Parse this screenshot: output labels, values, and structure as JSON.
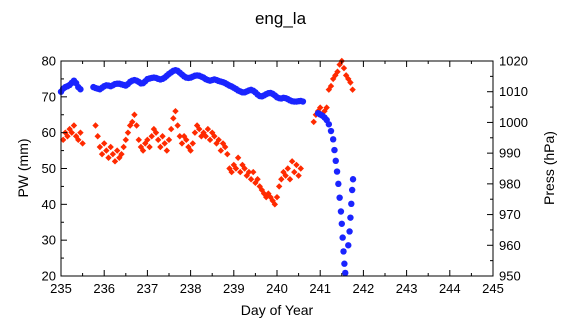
{
  "chart_data": {
    "type": "scatter",
    "title": "eng_la",
    "xlabel": "Day of Year",
    "ylabel_left": "PW (mm)",
    "ylabel_right": "Press (hPa)",
    "xlim": [
      235,
      245
    ],
    "ylim_left": [
      20,
      80
    ],
    "ylim_right": [
      950,
      1020
    ],
    "xticks": [
      "235",
      "236",
      "237",
      "238",
      "239",
      "240",
      "241",
      "242",
      "243",
      "244",
      "245"
    ],
    "yticks_left": [
      "20",
      "30",
      "40",
      "50",
      "60",
      "70",
      "80"
    ],
    "yticks_right": [
      "950",
      "960",
      "970",
      "980",
      "990",
      "1000",
      "1010",
      "1020"
    ],
    "grid": false,
    "legend": "none",
    "series": [
      {
        "axis": "left",
        "color": "#ff2a00",
        "marker": "diamond",
        "points": [
          [
            235.05,
            58
          ],
          [
            235.1,
            60
          ],
          [
            235.15,
            59
          ],
          [
            235.2,
            61
          ],
          [
            235.25,
            60
          ],
          [
            235.3,
            62
          ],
          [
            235.35,
            59
          ],
          [
            235.4,
            58
          ],
          [
            235.45,
            60
          ],
          [
            235.5,
            57
          ],
          [
            235.8,
            62
          ],
          [
            235.85,
            59
          ],
          [
            235.9,
            56
          ],
          [
            235.95,
            54
          ],
          [
            236.0,
            57
          ],
          [
            236.05,
            55
          ],
          [
            236.1,
            53
          ],
          [
            236.15,
            56
          ],
          [
            236.2,
            54
          ],
          [
            236.25,
            52
          ],
          [
            236.3,
            55
          ],
          [
            236.35,
            53
          ],
          [
            236.4,
            54
          ],
          [
            236.45,
            56
          ],
          [
            236.5,
            58
          ],
          [
            236.55,
            60
          ],
          [
            236.6,
            62
          ],
          [
            236.65,
            63
          ],
          [
            236.7,
            65
          ],
          [
            236.75,
            62
          ],
          [
            236.8,
            58
          ],
          [
            236.85,
            56
          ],
          [
            236.9,
            55
          ],
          [
            236.95,
            57
          ],
          [
            237.0,
            58
          ],
          [
            237.05,
            56
          ],
          [
            237.1,
            59
          ],
          [
            237.15,
            61
          ],
          [
            237.2,
            60
          ],
          [
            237.25,
            58
          ],
          [
            237.3,
            56
          ],
          [
            237.35,
            59
          ],
          [
            237.4,
            57
          ],
          [
            237.45,
            55
          ],
          [
            237.5,
            58
          ],
          [
            237.55,
            61
          ],
          [
            237.6,
            64
          ],
          [
            237.65,
            66
          ],
          [
            237.7,
            62
          ],
          [
            237.75,
            59
          ],
          [
            237.8,
            57
          ],
          [
            237.85,
            59
          ],
          [
            237.9,
            58
          ],
          [
            237.95,
            56
          ],
          [
            238.0,
            55
          ],
          [
            238.05,
            57
          ],
          [
            238.1,
            60
          ],
          [
            238.15,
            62
          ],
          [
            238.2,
            61
          ],
          [
            238.25,
            59
          ],
          [
            238.3,
            60
          ],
          [
            238.35,
            59
          ],
          [
            238.4,
            61
          ],
          [
            238.45,
            58
          ],
          [
            238.5,
            60
          ],
          [
            238.55,
            59
          ],
          [
            238.6,
            57
          ],
          [
            238.65,
            58
          ],
          [
            238.7,
            55
          ],
          [
            238.75,
            57
          ],
          [
            238.8,
            56
          ],
          [
            238.85,
            54
          ],
          [
            238.9,
            50
          ],
          [
            238.95,
            49
          ],
          [
            239.0,
            51
          ],
          [
            239.05,
            50
          ],
          [
            239.1,
            53
          ],
          [
            239.15,
            49
          ],
          [
            239.2,
            51
          ],
          [
            239.25,
            50
          ],
          [
            239.3,
            48
          ],
          [
            239.35,
            49
          ],
          [
            239.4,
            47
          ],
          [
            239.45,
            49
          ],
          [
            239.5,
            46
          ],
          [
            239.55,
            47
          ],
          [
            239.6,
            45
          ],
          [
            239.65,
            44
          ],
          [
            239.7,
            43
          ],
          [
            239.75,
            42
          ],
          [
            239.8,
            43
          ],
          [
            239.85,
            42
          ],
          [
            239.9,
            41
          ],
          [
            239.95,
            40
          ],
          [
            240.0,
            42
          ],
          [
            240.05,
            45
          ],
          [
            240.1,
            47
          ],
          [
            240.15,
            49
          ],
          [
            240.2,
            48
          ],
          [
            240.25,
            50
          ],
          [
            240.3,
            47
          ],
          [
            240.35,
            52
          ],
          [
            240.4,
            49
          ],
          [
            240.45,
            51
          ],
          [
            240.5,
            48
          ],
          [
            240.55,
            50
          ],
          [
            240.85,
            63
          ],
          [
            240.9,
            65
          ],
          [
            240.95,
            66
          ],
          [
            241.0,
            67
          ],
          [
            241.05,
            65
          ],
          [
            241.1,
            66
          ],
          [
            241.15,
            67
          ],
          [
            241.2,
            72
          ],
          [
            241.25,
            73
          ],
          [
            241.3,
            75
          ],
          [
            241.35,
            76
          ],
          [
            241.4,
            77
          ],
          [
            241.45,
            79
          ],
          [
            241.5,
            80
          ],
          [
            241.55,
            78
          ],
          [
            241.6,
            76
          ],
          [
            241.65,
            75
          ],
          [
            241.7,
            74
          ],
          [
            241.75,
            72
          ]
        ]
      },
      {
        "axis": "right",
        "color": "#1a24ff",
        "marker": "circle",
        "points": [
          [
            235.0,
            1010.0
          ],
          [
            235.05,
            1011.0
          ],
          [
            235.1,
            1011.5
          ],
          [
            235.15,
            1011.8
          ],
          [
            235.2,
            1012.2
          ],
          [
            235.25,
            1012.9
          ],
          [
            235.3,
            1013.6
          ],
          [
            235.35,
            1012.8
          ],
          [
            235.4,
            1011.5
          ],
          [
            235.45,
            1010.8
          ],
          [
            235.75,
            1011.5
          ],
          [
            235.8,
            1011.2
          ],
          [
            235.85,
            1011.0
          ],
          [
            235.9,
            1010.8
          ],
          [
            235.95,
            1011.3
          ],
          [
            236.0,
            1011.8
          ],
          [
            236.05,
            1012.1
          ],
          [
            236.1,
            1012.0
          ],
          [
            236.15,
            1011.8
          ],
          [
            236.2,
            1012.1
          ],
          [
            236.25,
            1012.5
          ],
          [
            236.3,
            1012.6
          ],
          [
            236.35,
            1012.6
          ],
          [
            236.4,
            1012.4
          ],
          [
            236.45,
            1012.2
          ],
          [
            236.5,
            1012.0
          ],
          [
            236.55,
            1012.5
          ],
          [
            236.6,
            1013.2
          ],
          [
            236.65,
            1013.6
          ],
          [
            236.7,
            1013.8
          ],
          [
            236.75,
            1013.6
          ],
          [
            236.8,
            1013.2
          ],
          [
            236.85,
            1012.7
          ],
          [
            236.9,
            1012.8
          ],
          [
            236.95,
            1013.4
          ],
          [
            237.0,
            1014.1
          ],
          [
            237.05,
            1014.3
          ],
          [
            237.1,
            1014.5
          ],
          [
            237.15,
            1014.6
          ],
          [
            237.2,
            1014.5
          ],
          [
            237.25,
            1014.2
          ],
          [
            237.3,
            1014.0
          ],
          [
            237.35,
            1014.2
          ],
          [
            237.4,
            1014.6
          ],
          [
            237.45,
            1015.2
          ],
          [
            237.5,
            1015.8
          ],
          [
            237.55,
            1016.3
          ],
          [
            237.6,
            1016.8
          ],
          [
            237.65,
            1017.0
          ],
          [
            237.7,
            1016.8
          ],
          [
            237.75,
            1016.2
          ],
          [
            237.8,
            1015.6
          ],
          [
            237.85,
            1015.0
          ],
          [
            237.9,
            1014.6
          ],
          [
            237.95,
            1014.5
          ],
          [
            238.0,
            1014.6
          ],
          [
            238.05,
            1014.9
          ],
          [
            238.1,
            1015.2
          ],
          [
            238.15,
            1015.3
          ],
          [
            238.2,
            1015.2
          ],
          [
            238.25,
            1014.9
          ],
          [
            238.3,
            1014.6
          ],
          [
            238.35,
            1014.1
          ],
          [
            238.4,
            1013.8
          ],
          [
            238.45,
            1013.6
          ],
          [
            238.5,
            1013.8
          ],
          [
            238.55,
            1014.0
          ],
          [
            238.6,
            1013.8
          ],
          [
            238.65,
            1013.5
          ],
          [
            238.7,
            1013.3
          ],
          [
            238.75,
            1013.1
          ],
          [
            238.8,
            1012.8
          ],
          [
            238.85,
            1012.4
          ],
          [
            238.9,
            1012.0
          ],
          [
            238.95,
            1011.7
          ],
          [
            239.0,
            1011.3
          ],
          [
            239.05,
            1010.9
          ],
          [
            239.1,
            1010.4
          ],
          [
            239.15,
            1010.1
          ],
          [
            239.2,
            1009.8
          ],
          [
            239.25,
            1009.8
          ],
          [
            239.3,
            1010.1
          ],
          [
            239.35,
            1010.4
          ],
          [
            239.4,
            1010.6
          ],
          [
            239.45,
            1010.3
          ],
          [
            239.5,
            1009.8
          ],
          [
            239.55,
            1009.1
          ],
          [
            239.6,
            1008.6
          ],
          [
            239.65,
            1008.5
          ],
          [
            239.7,
            1008.8
          ],
          [
            239.75,
            1009.2
          ],
          [
            239.8,
            1009.5
          ],
          [
            239.85,
            1009.6
          ],
          [
            239.9,
            1009.3
          ],
          [
            239.95,
            1008.8
          ],
          [
            240.0,
            1008.2
          ],
          [
            240.05,
            1007.9
          ],
          [
            240.1,
            1007.8
          ],
          [
            240.15,
            1008.0
          ],
          [
            240.2,
            1007.9
          ],
          [
            240.25,
            1007.6
          ],
          [
            240.3,
            1007.2
          ],
          [
            240.35,
            1006.9
          ],
          [
            240.4,
            1006.8
          ],
          [
            240.45,
            1006.8
          ],
          [
            240.5,
            1006.9
          ],
          [
            240.55,
            1007.0
          ],
          [
            240.6,
            1006.8
          ],
          [
            240.95,
            1003.0
          ],
          [
            241.0,
            1002.6
          ],
          [
            241.05,
            1002.2
          ],
          [
            241.1,
            1001.6
          ],
          [
            241.15,
            1000.8
          ],
          [
            241.2,
            999.4
          ],
          [
            241.25,
            997.2
          ],
          [
            241.3,
            994.5
          ],
          [
            241.33,
            991.0
          ],
          [
            241.36,
            987.5
          ],
          [
            241.39,
            984.0
          ],
          [
            241.42,
            980.0
          ],
          [
            241.45,
            975.5
          ],
          [
            241.48,
            971.0
          ],
          [
            241.5,
            967.0
          ],
          [
            241.52,
            962.5
          ],
          [
            241.54,
            958.0
          ],
          [
            241.56,
            954.0
          ],
          [
            241.58,
            951.0
          ],
          [
            241.65,
            960.0
          ],
          [
            241.68,
            964.5
          ],
          [
            241.7,
            969.0
          ],
          [
            241.72,
            973.5
          ],
          [
            241.74,
            978.0
          ],
          [
            241.76,
            981.5
          ]
        ]
      }
    ]
  }
}
